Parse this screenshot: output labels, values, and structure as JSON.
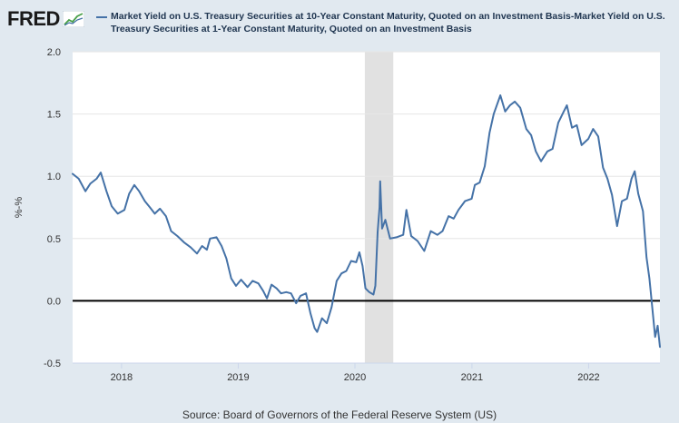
{
  "logo": {
    "text": "FRED"
  },
  "legend": {
    "text": "Market Yield on U.S. Treasury Securities at 10-Year Constant Maturity, Quoted on an Investment Basis-Market Yield on U.S. Treasury Securities at 1-Year Constant Maturity, Quoted on an Investment Basis",
    "color": "#4572a7"
  },
  "source": "Source: Board of Governors of the Federal Reserve System (US)",
  "chart_data": {
    "type": "line",
    "ylabel": "%-%",
    "ylim": [
      -0.5,
      2.0
    ],
    "xlim": [
      "2017-08-01",
      "2022-08-12"
    ],
    "y_ticks": [
      2.0,
      1.5,
      1.0,
      0.5,
      0.0,
      -0.5
    ],
    "y_tick_labels": [
      "2.0",
      "1.5",
      "1.0",
      "0.5",
      "0.0",
      "-0.5"
    ],
    "x_ticks": [
      "2018-01-01",
      "2019-01-01",
      "2020-01-01",
      "2021-01-01",
      "2022-01-01"
    ],
    "x_tick_labels": [
      "2018",
      "2019",
      "2020",
      "2021",
      "2022"
    ],
    "recession": {
      "start": "2020-02-01",
      "end": "2020-04-30"
    },
    "zero_line": 0,
    "grid": "horizontal",
    "background": "#ffffff",
    "series": [
      {
        "color": "#4572a7",
        "points": [
          [
            "2017-08-01",
            1.02
          ],
          [
            "2017-08-20",
            0.98
          ],
          [
            "2017-09-10",
            0.88
          ],
          [
            "2017-09-25",
            0.94
          ],
          [
            "2017-10-15",
            0.98
          ],
          [
            "2017-10-28",
            1.03
          ],
          [
            "2017-11-15",
            0.88
          ],
          [
            "2017-12-01",
            0.76
          ],
          [
            "2017-12-20",
            0.7
          ],
          [
            "2018-01-10",
            0.73
          ],
          [
            "2018-01-25",
            0.86
          ],
          [
            "2018-02-10",
            0.93
          ],
          [
            "2018-02-25",
            0.88
          ],
          [
            "2018-03-15",
            0.8
          ],
          [
            "2018-03-31",
            0.75
          ],
          [
            "2018-04-15",
            0.7
          ],
          [
            "2018-05-01",
            0.74
          ],
          [
            "2018-05-20",
            0.68
          ],
          [
            "2018-06-05",
            0.56
          ],
          [
            "2018-06-25",
            0.52
          ],
          [
            "2018-07-15",
            0.47
          ],
          [
            "2018-08-05",
            0.43
          ],
          [
            "2018-08-25",
            0.38
          ],
          [
            "2018-09-10",
            0.44
          ],
          [
            "2018-09-25",
            0.41
          ],
          [
            "2018-10-05",
            0.5
          ],
          [
            "2018-10-25",
            0.51
          ],
          [
            "2018-11-10",
            0.44
          ],
          [
            "2018-11-25",
            0.34
          ],
          [
            "2018-12-10",
            0.18
          ],
          [
            "2018-12-25",
            0.12
          ],
          [
            "2019-01-10",
            0.17
          ],
          [
            "2019-01-30",
            0.11
          ],
          [
            "2019-02-15",
            0.16
          ],
          [
            "2019-03-05",
            0.14
          ],
          [
            "2019-03-20",
            0.08
          ],
          [
            "2019-04-01",
            0.02
          ],
          [
            "2019-04-15",
            0.13
          ],
          [
            "2019-05-01",
            0.1
          ],
          [
            "2019-05-15",
            0.06
          ],
          [
            "2019-05-31",
            0.07
          ],
          [
            "2019-06-15",
            0.06
          ],
          [
            "2019-07-01",
            -0.02
          ],
          [
            "2019-07-15",
            0.04
          ],
          [
            "2019-08-01",
            0.06
          ],
          [
            "2019-08-15",
            -0.1
          ],
          [
            "2019-08-28",
            -0.22
          ],
          [
            "2019-09-05",
            -0.25
          ],
          [
            "2019-09-20",
            -0.14
          ],
          [
            "2019-10-05",
            -0.18
          ],
          [
            "2019-10-20",
            -0.05
          ],
          [
            "2019-11-05",
            0.16
          ],
          [
            "2019-11-20",
            0.22
          ],
          [
            "2019-12-05",
            0.24
          ],
          [
            "2019-12-20",
            0.32
          ],
          [
            "2020-01-05",
            0.31
          ],
          [
            "2020-01-15",
            0.39
          ],
          [
            "2020-01-25",
            0.28
          ],
          [
            "2020-02-03",
            0.1
          ],
          [
            "2020-02-15",
            0.07
          ],
          [
            "2020-02-28",
            0.05
          ],
          [
            "2020-03-05",
            0.12
          ],
          [
            "2020-03-12",
            0.55
          ],
          [
            "2020-03-18",
            0.75
          ],
          [
            "2020-03-20",
            0.96
          ],
          [
            "2020-03-26",
            0.58
          ],
          [
            "2020-04-05",
            0.65
          ],
          [
            "2020-04-20",
            0.5
          ],
          [
            "2020-05-10",
            0.51
          ],
          [
            "2020-05-31",
            0.53
          ],
          [
            "2020-06-10",
            0.73
          ],
          [
            "2020-06-25",
            0.52
          ],
          [
            "2020-07-15",
            0.48
          ],
          [
            "2020-08-05",
            0.4
          ],
          [
            "2020-08-25",
            0.56
          ],
          [
            "2020-09-15",
            0.53
          ],
          [
            "2020-10-01",
            0.56
          ],
          [
            "2020-10-20",
            0.68
          ],
          [
            "2020-11-05",
            0.66
          ],
          [
            "2020-11-20",
            0.73
          ],
          [
            "2020-12-10",
            0.8
          ],
          [
            "2020-12-31",
            0.82
          ],
          [
            "2021-01-10",
            0.93
          ],
          [
            "2021-01-25",
            0.95
          ],
          [
            "2021-02-10",
            1.08
          ],
          [
            "2021-02-25",
            1.35
          ],
          [
            "2021-03-10",
            1.5
          ],
          [
            "2021-03-31",
            1.65
          ],
          [
            "2021-04-15",
            1.52
          ],
          [
            "2021-04-30",
            1.57
          ],
          [
            "2021-05-15",
            1.6
          ],
          [
            "2021-06-01",
            1.55
          ],
          [
            "2021-06-20",
            1.38
          ],
          [
            "2021-07-05",
            1.33
          ],
          [
            "2021-07-20",
            1.2
          ],
          [
            "2021-08-05",
            1.12
          ],
          [
            "2021-08-25",
            1.2
          ],
          [
            "2021-09-10",
            1.22
          ],
          [
            "2021-09-28",
            1.43
          ],
          [
            "2021-10-15",
            1.52
          ],
          [
            "2021-10-25",
            1.57
          ],
          [
            "2021-11-10",
            1.39
          ],
          [
            "2021-11-25",
            1.41
          ],
          [
            "2021-12-10",
            1.25
          ],
          [
            "2021-12-31",
            1.3
          ],
          [
            "2022-01-15",
            1.38
          ],
          [
            "2022-01-31",
            1.32
          ],
          [
            "2022-02-15",
            1.07
          ],
          [
            "2022-03-01",
            0.98
          ],
          [
            "2022-03-15",
            0.85
          ],
          [
            "2022-03-31",
            0.6
          ],
          [
            "2022-04-15",
            0.8
          ],
          [
            "2022-05-01",
            0.82
          ],
          [
            "2022-05-15",
            0.98
          ],
          [
            "2022-05-25",
            1.04
          ],
          [
            "2022-06-05",
            0.86
          ],
          [
            "2022-06-20",
            0.72
          ],
          [
            "2022-07-01",
            0.35
          ],
          [
            "2022-07-10",
            0.18
          ],
          [
            "2022-07-20",
            -0.08
          ],
          [
            "2022-07-28",
            -0.29
          ],
          [
            "2022-08-05",
            -0.2
          ],
          [
            "2022-08-12",
            -0.37
          ]
        ]
      }
    ]
  }
}
